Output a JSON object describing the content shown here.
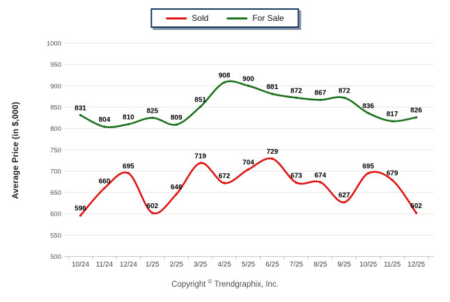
{
  "legend": {
    "items": [
      {
        "label": "Sold",
        "color": "#e01414"
      },
      {
        "label": "For Sale",
        "color": "#1d721d"
      }
    ]
  },
  "y_axis_title": "Average Price (in $,000)",
  "footer": {
    "copyright_prefix": "Copyright",
    "copyright_symbol": "©",
    "copyright_suffix": "Trendgraphix, Inc."
  },
  "chart_data": {
    "type": "line",
    "title": "",
    "xlabel": "",
    "ylabel": "Average Price (in $,000)",
    "categories": [
      "10/24",
      "11/24",
      "12/24",
      "1/25",
      "2/25",
      "3/25",
      "4/25",
      "5/25",
      "6/25",
      "7/25",
      "8/25",
      "9/25",
      "10/25",
      "11/25",
      "12/25"
    ],
    "series": [
      {
        "name": "Sold",
        "color": "#e01414",
        "values": [
          596,
          660,
          695,
          602,
          646,
          719,
          672,
          704,
          729,
          673,
          674,
          627,
          695,
          679,
          602
        ]
      },
      {
        "name": "For Sale",
        "color": "#1d721d",
        "values": [
          831,
          804,
          810,
          825,
          809,
          851,
          908,
          900,
          881,
          872,
          867,
          872,
          836,
          817,
          826
        ]
      }
    ],
    "ylim": [
      500,
      1000
    ],
    "ytick_step": 50,
    "grid": true,
    "data_labels": true,
    "legend_position": "top-center"
  },
  "colors": {
    "gridline": "#eae7e4",
    "axis_line": "#c9c6c2",
    "tick_mark": "#b9b6b2",
    "y_tick_label": "#57524b",
    "x_tick_label": "#3c4049",
    "data_label": "#000000"
  }
}
